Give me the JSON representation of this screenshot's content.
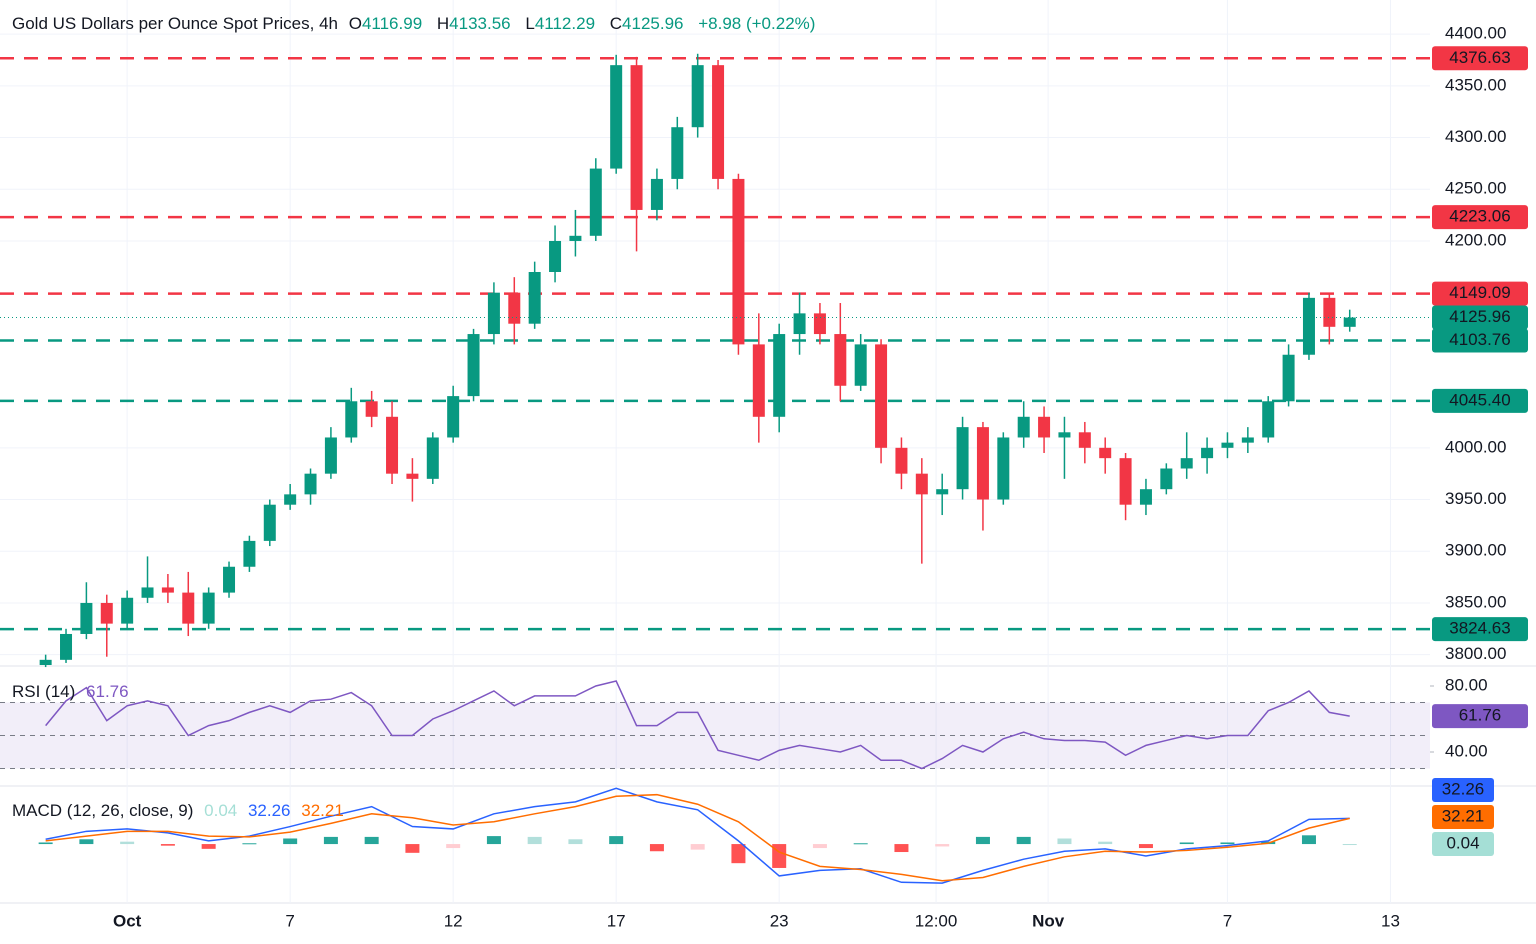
{
  "chart_data": {
    "type": "candlestick",
    "title": "Gold US Dollars per Ounce Spot Prices, 4h",
    "ohlc_labels": [
      "O",
      "H",
      "L",
      "C"
    ],
    "change_label": "+8.98 (+0.22%)",
    "up_color": "#089981",
    "down_color": "#f23645",
    "xlim": [
      -3.12,
      31.97
    ],
    "xticks": [
      {
        "value": 0,
        "label": "Oct"
      },
      {
        "value": 4,
        "label": "7"
      },
      {
        "value": 8,
        "label": "12"
      },
      {
        "value": 12,
        "label": "17"
      },
      {
        "value": 16,
        "label": "23"
      },
      {
        "value": 19.85,
        "label": "12:00"
      },
      {
        "value": 22.6,
        "label": "Nov"
      },
      {
        "value": 27,
        "label": "7"
      },
      {
        "value": 31,
        "label": "13"
      }
    ],
    "ylim": [
      3790,
      4433
    ],
    "yticks": [
      {
        "value": 3800,
        "label": "3800.00"
      },
      {
        "value": 3850,
        "label": "3850.00"
      },
      {
        "value": 3900,
        "label": "3900.00"
      },
      {
        "value": 3950,
        "label": "3950.00"
      },
      {
        "value": 4000,
        "label": "4000.00"
      },
      {
        "value": 4200,
        "label": "4200.00"
      },
      {
        "value": 4250,
        "label": "4250.00"
      },
      {
        "value": 4300,
        "label": "4300.00"
      },
      {
        "value": 4350,
        "label": "4350.00"
      },
      {
        "value": 4400,
        "label": "4400.00"
      }
    ],
    "grid": true,
    "candles": {
      "x": [
        -2,
        -1.5,
        -1,
        -0.5,
        0,
        0.5,
        1,
        1.5,
        2,
        2.5,
        3,
        3.5,
        4,
        4.5,
        5,
        5.5,
        6,
        6.5,
        7,
        7.5,
        8,
        8.5,
        9,
        9.5,
        10,
        10.5,
        11,
        11.5,
        12,
        12.5,
        13,
        13.5,
        14,
        14.5,
        15,
        15.5,
        16,
        16.5,
        17,
        17.5,
        18,
        18.5,
        19,
        19.5,
        20,
        20.5,
        21,
        21.5,
        22,
        22.5,
        23,
        23.5,
        24,
        24.5,
        25,
        25.5,
        26,
        26.5,
        27,
        27.5,
        28,
        28.5,
        29,
        29.5,
        30
      ],
      "open": [
        3790,
        3795,
        3820,
        3850,
        3830,
        3855,
        3865,
        3860,
        3830,
        3860,
        3885,
        3910,
        3945,
        3955,
        3975,
        4010,
        4045,
        4030,
        3975,
        3970,
        4010,
        4050,
        4110,
        4150,
        4120,
        4170,
        4200,
        4205,
        4270,
        4370,
        4230,
        4260,
        4310,
        4370,
        4260,
        4100,
        4030,
        4110,
        4130,
        4110,
        4060,
        4100,
        4000,
        3975,
        3955,
        3960,
        4020,
        3950,
        4010,
        4030,
        4010,
        4015,
        4000,
        3990,
        3945,
        3960,
        3980,
        3990,
        4000,
        4005,
        4010,
        4045,
        4090,
        4145,
        4116.99
      ],
      "high": [
        3800,
        3825,
        3870,
        3858,
        3862,
        3895,
        3878,
        3880,
        3865,
        3890,
        3915,
        3950,
        3965,
        3980,
        4020,
        4058,
        4055,
        4045,
        3990,
        4015,
        4060,
        4115,
        4160,
        4165,
        4180,
        4215,
        4230,
        4280,
        4380,
        4378,
        4270,
        4320,
        4381,
        4375,
        4265,
        4130,
        4120,
        4150,
        4140,
        4140,
        4110,
        4105,
        4010,
        3990,
        3975,
        4030,
        4025,
        4015,
        4045,
        4040,
        4030,
        4025,
        4010,
        3995,
        3970,
        3985,
        4015,
        4010,
        4015,
        4020,
        4050,
        4100,
        4150,
        4150,
        4133.56
      ],
      "low": [
        3788,
        3792,
        3815,
        3798,
        3825,
        3850,
        3850,
        3818,
        3825,
        3855,
        3880,
        3905,
        3940,
        3945,
        3970,
        4005,
        4020,
        3965,
        3948,
        3965,
        4005,
        4045,
        4100,
        4100,
        4115,
        4160,
        4185,
        4200,
        4265,
        4190,
        4220,
        4250,
        4300,
        4250,
        4090,
        4005,
        4015,
        4090,
        4100,
        4045,
        4055,
        3985,
        3960,
        3888,
        3935,
        3950,
        3920,
        3945,
        4000,
        3995,
        3970,
        3985,
        3975,
        3930,
        3935,
        3955,
        3970,
        3975,
        3990,
        3995,
        4005,
        4040,
        4085,
        4100,
        4112.29
      ],
      "close": [
        3795,
        3820,
        3850,
        3830,
        3855,
        3865,
        3860,
        3830,
        3860,
        3885,
        3910,
        3945,
        3955,
        3975,
        4010,
        4045,
        4030,
        3975,
        3970,
        4010,
        4050,
        4110,
        4150,
        4120,
        4170,
        4200,
        4205,
        4270,
        4370,
        4230,
        4260,
        4310,
        4370,
        4260,
        4100,
        4030,
        4110,
        4130,
        4110,
        4060,
        4100,
        4000,
        3975,
        3955,
        3960,
        4020,
        3950,
        4010,
        4030,
        4010,
        4015,
        4000,
        3990,
        3945,
        3960,
        3980,
        3990,
        4000,
        4005,
        4010,
        4045,
        4090,
        4145,
        4117,
        4125.96
      ]
    },
    "levels": [
      {
        "value": 4376.63,
        "color": "#f23645"
      },
      {
        "value": 4223.06,
        "color": "#f23645"
      },
      {
        "value": 4149.09,
        "color": "#f23645"
      },
      {
        "value": 4103.76,
        "color": "#089981"
      },
      {
        "value": 4045.4,
        "label": "4045.40",
        "color": "#089981"
      },
      {
        "value": 3824.63,
        "color": "#089981"
      }
    ],
    "rsi": {
      "title": "RSI (14)",
      "color": "#7e57c2",
      "ylim": [
        20,
        90.9
      ],
      "yticks": [
        {
          "value": 40,
          "label": "40.00"
        },
        {
          "value": 80,
          "label": "80.00"
        }
      ],
      "bands": [
        30,
        50,
        70
      ],
      "values": [
        56,
        71,
        79,
        59,
        68,
        71,
        68,
        50,
        56,
        59,
        64,
        68,
        64,
        71,
        72,
        76,
        68,
        50,
        50,
        60,
        65,
        71,
        77,
        68,
        74,
        74,
        74,
        80,
        83,
        56,
        56,
        64,
        64,
        41,
        38,
        35,
        41,
        44,
        42,
        40,
        44,
        35,
        35,
        30,
        36,
        44,
        40,
        48,
        52,
        48,
        47,
        47,
        46,
        38,
        44,
        47,
        50,
        48,
        50,
        50,
        65,
        70,
        77,
        64,
        61.76
      ]
    },
    "macd": {
      "title": "MACD (12, 26, close, 9)",
      "x": [
        -2,
        -1,
        0,
        1,
        2,
        3,
        4,
        5,
        6,
        7,
        8,
        9,
        10,
        11,
        12,
        13,
        14,
        15,
        16,
        17,
        18,
        19,
        20,
        21,
        22,
        23,
        24,
        25,
        26,
        27,
        28,
        29,
        30
      ],
      "ylim": [
        -74,
        70.4
      ],
      "series": [
        {
          "color": "#2962ff",
          "values": [
            6,
            16,
            19,
            14,
            4,
            10,
            22,
            35,
            47,
            22,
            19,
            38,
            47,
            53,
            70,
            53,
            43,
            4,
            -40,
            -33,
            -31,
            -48,
            -49,
            -33,
            -19,
            -9,
            -6,
            -15,
            -6,
            -2,
            4,
            31,
            32.26
          ]
        },
        {
          "color": "#ff6d00",
          "values": [
            4,
            10,
            16,
            16,
            10,
            9,
            15,
            26,
            38,
            33,
            24,
            28,
            38,
            47,
            60,
            62,
            50,
            28,
            -10,
            -28,
            -32,
            -38,
            -46,
            -42,
            -28,
            -16,
            -9,
            -10,
            -8,
            -4,
            1,
            20,
            32.21
          ]
        }
      ],
      "histogram": {
        "colors": [
          "#26a69a",
          "#b2dfdb",
          "#ff5252",
          "#ffcdd2"
        ],
        "values": [
          2,
          6,
          3,
          -2,
          -6,
          1,
          7,
          9,
          9,
          -11,
          -5,
          10,
          9,
          6,
          10,
          -9,
          -7,
          -24,
          -30,
          -5,
          1,
          -10,
          -3,
          9,
          9,
          7,
          3,
          -5,
          2,
          2,
          3,
          11,
          0.04
        ]
      }
    }
  }
}
